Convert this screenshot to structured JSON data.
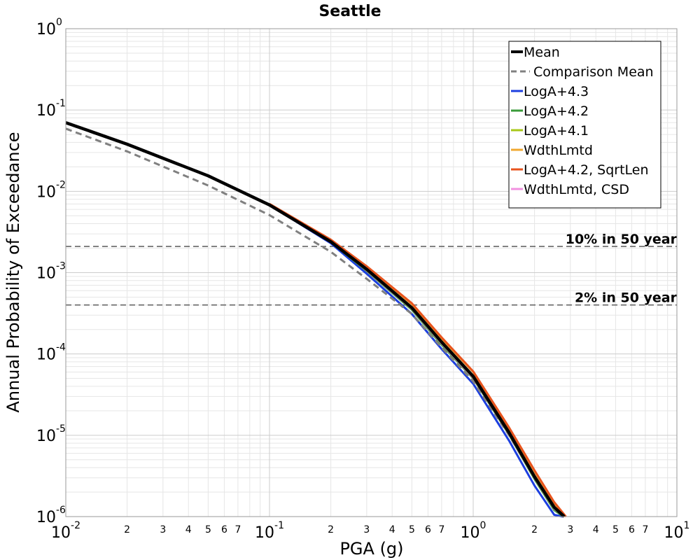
{
  "chart_data": {
    "type": "line",
    "title": "Seattle",
    "xlabel": "PGA (g)",
    "ylabel": "Annual Probability of Exceedance",
    "xscale": "log",
    "yscale": "log",
    "xlim": [
      0.01,
      10
    ],
    "ylim": [
      1e-06,
      1
    ],
    "grid": true,
    "legend_position": "top-right",
    "x_major_ticks": [
      {
        "value": 0.01,
        "base": "10",
        "exp": "-2"
      },
      {
        "value": 0.1,
        "base": "10",
        "exp": "-1"
      },
      {
        "value": 1,
        "base": "10",
        "exp": "0"
      },
      {
        "value": 10,
        "base": "10",
        "exp": "1"
      }
    ],
    "x_minor_tick_labels": [
      "2",
      "3",
      "4",
      "5",
      "6",
      "7"
    ],
    "y_major_ticks": [
      {
        "value": 1,
        "base": "10",
        "exp": "0"
      },
      {
        "value": 0.1,
        "base": "10",
        "exp": "-1"
      },
      {
        "value": 0.01,
        "base": "10",
        "exp": "-2"
      },
      {
        "value": 0.001,
        "base": "10",
        "exp": "-3"
      },
      {
        "value": 0.0001,
        "base": "10",
        "exp": "-4"
      },
      {
        "value": 1e-05,
        "base": "10",
        "exp": "-5"
      },
      {
        "value": 1e-06,
        "base": "10",
        "exp": "-6"
      }
    ],
    "reference_lines": [
      {
        "label": "10% in 50 year",
        "y": 0.0021
      },
      {
        "label": "2% in 50 year",
        "y": 0.0004
      }
    ],
    "series": [
      {
        "name": "Mean",
        "color": "#000000",
        "style": "solid",
        "x": [
          0.01,
          0.02,
          0.05,
          0.1,
          0.2,
          0.3,
          0.5,
          0.7,
          1.0,
          1.5,
          2.0,
          2.5,
          2.8
        ],
        "y": [
          0.07,
          0.038,
          0.0155,
          0.0068,
          0.0024,
          0.0011,
          0.00037,
          0.00014,
          5.3e-05,
          1.08e-05,
          3.1e-06,
          1.3e-06,
          1e-06
        ]
      },
      {
        "name": "Comparison Mean",
        "color": "#808080",
        "style": "dashed",
        "x": [
          0.01,
          0.02,
          0.05,
          0.1,
          0.2,
          0.3,
          0.5,
          0.7,
          1.0,
          1.5,
          2.0,
          2.5,
          2.8
        ],
        "y": [
          0.059,
          0.031,
          0.0118,
          0.0051,
          0.0018,
          0.00084,
          0.00031,
          0.00012,
          4.6e-05,
          1e-05,
          3e-06,
          1.25e-06,
          1e-06
        ]
      },
      {
        "name": "LogA+4.3",
        "color": "#1c3fe0",
        "style": "solid",
        "x": [
          0.1,
          0.2,
          0.3,
          0.5,
          0.7,
          1.0,
          1.5,
          2.0,
          2.5,
          2.75
        ],
        "y": [
          0.0068,
          0.0023,
          0.00097,
          0.00031,
          0.000115,
          4.3e-05,
          8.6e-06,
          2.4e-06,
          1.05e-06,
          1e-06
        ]
      },
      {
        "name": "LogA+4.2",
        "color": "#3a9b3a",
        "style": "solid",
        "x": [
          0.1,
          0.2,
          0.3,
          0.5,
          0.7,
          1.0,
          1.5,
          2.0,
          2.5,
          2.78
        ],
        "y": [
          0.0068,
          0.00238,
          0.00105,
          0.00035,
          0.00013,
          5e-05,
          1.02e-05,
          2.9e-06,
          1.2e-06,
          1e-06
        ]
      },
      {
        "name": "LogA+4.1",
        "color": "#a8c81a",
        "style": "solid",
        "x": [
          0.1,
          0.2,
          0.3,
          0.5,
          0.7,
          1.0,
          1.5,
          2.0,
          2.5,
          2.79
        ],
        "y": [
          0.0069,
          0.00242,
          0.00108,
          0.00036,
          0.000135,
          5.1e-05,
          1.04e-05,
          3e-06,
          1.25e-06,
          1e-06
        ]
      },
      {
        "name": "WdthLmtd",
        "color": "#f0a830",
        "style": "solid",
        "x": [
          0.1,
          0.2,
          0.3,
          0.5,
          0.7,
          1.0,
          1.5,
          2.0,
          2.5,
          2.84
        ],
        "y": [
          0.007,
          0.00252,
          0.00118,
          0.00041,
          0.000155,
          6e-05,
          1.22e-05,
          3.6e-06,
          1.45e-06,
          1e-06
        ]
      },
      {
        "name": "LogA+4.2, SqrtLen",
        "color": "#e8541e",
        "style": "solid",
        "x": [
          0.1,
          0.2,
          0.3,
          0.5,
          0.7,
          1.0,
          1.5,
          2.0,
          2.5,
          2.85
        ],
        "y": [
          0.007,
          0.00255,
          0.0012,
          0.00042,
          0.00016,
          6.1e-05,
          1.25e-05,
          3.7e-06,
          1.5e-06,
          1e-06
        ]
      },
      {
        "name": "WdthLmtd, CSD",
        "color": "#f290e0",
        "style": "solid",
        "x": [
          0.1,
          0.2,
          0.3,
          0.5,
          0.7,
          1.0,
          1.5,
          2.0,
          2.5,
          2.8
        ],
        "y": [
          0.0069,
          0.0024,
          0.00107,
          0.00036,
          0.000135,
          5.1e-05,
          1.05e-05,
          3e-06,
          1.25e-06,
          1e-06
        ]
      }
    ]
  }
}
